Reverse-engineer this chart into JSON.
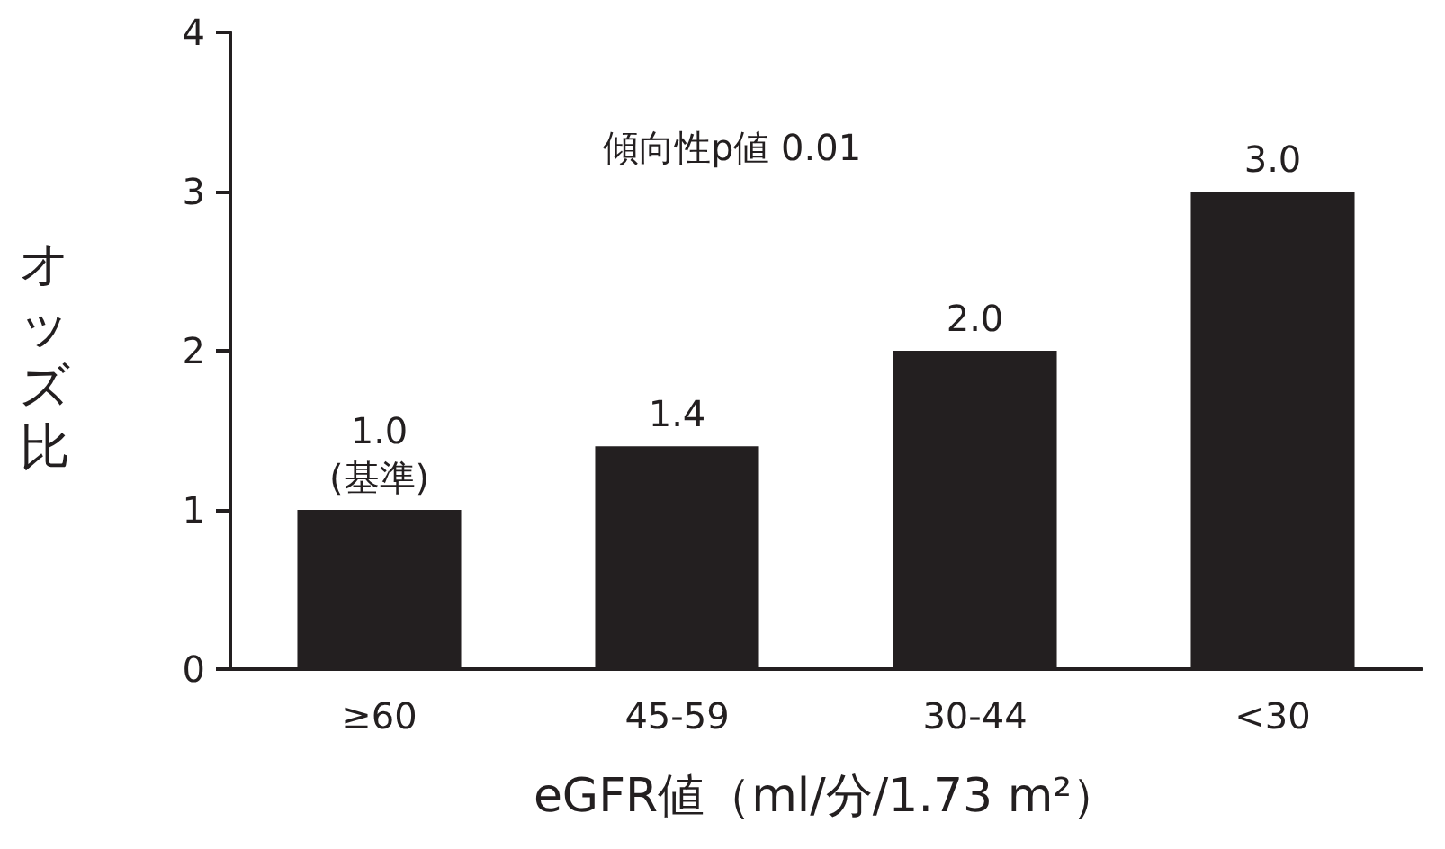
{
  "chart_data": {
    "type": "bar",
    "categories": [
      "≥60",
      "45-59",
      "30-44",
      "<30"
    ],
    "values": [
      1.0,
      1.4,
      2.0,
      3.0
    ],
    "value_labels": [
      "1.0\n(基準)",
      "1.4",
      "2.0",
      "3.0"
    ],
    "color": "#231f20",
    "xlabel": "eGFR値（ml/分/1.73 m²）",
    "ylabel": "オッズ比",
    "annotations": [
      "傾向性p値 0.01"
    ],
    "ylim": [
      0,
      4
    ],
    "yticks": [
      0,
      1,
      2,
      3,
      4
    ],
    "grid": false
  }
}
